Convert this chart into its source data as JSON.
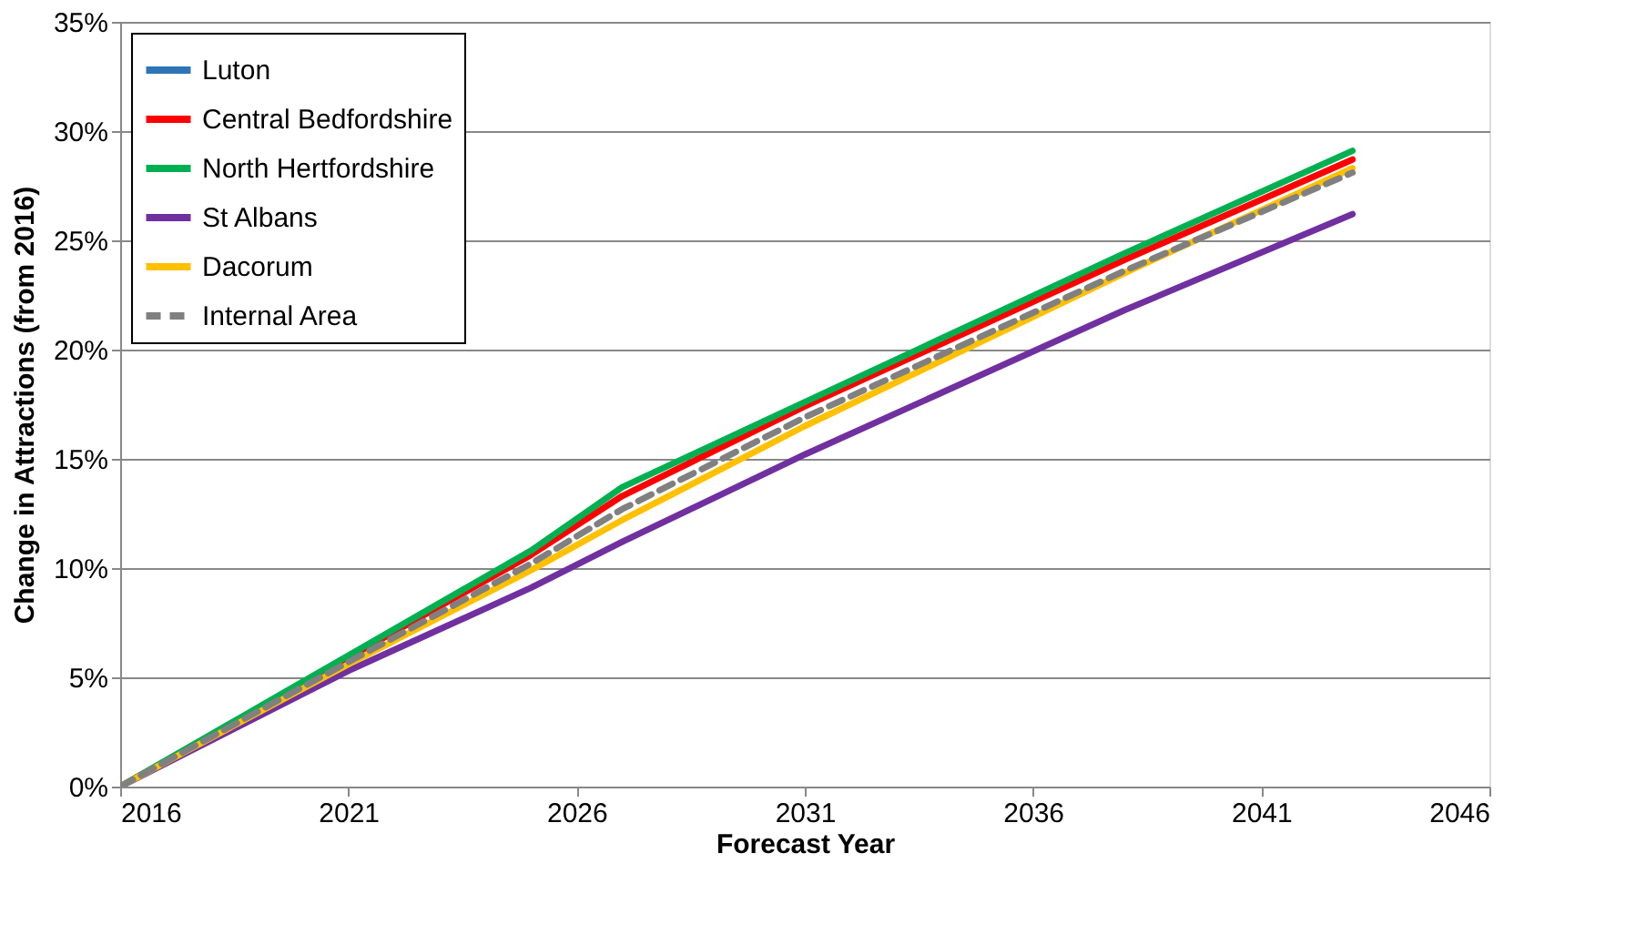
{
  "chart_data": {
    "type": "line",
    "xlabel": "Forecast Year",
    "ylabel": "Change in Attractions (from 2016)",
    "x": [
      2016,
      2021,
      2025,
      2027,
      2031,
      2038,
      2043
    ],
    "series": [
      {
        "name": "Luton",
        "color": "#2e75b6",
        "values": [
          null,
          null,
          null,
          null,
          null,
          null,
          null
        ]
      },
      {
        "name": "Central Bedfordshire",
        "color": "#ff0000",
        "values": [
          0,
          5.9,
          10.6,
          13.3,
          17.4,
          24.1,
          28.7
        ]
      },
      {
        "name": "North Hertfordshire",
        "color": "#00b050",
        "values": [
          0,
          6.0,
          10.8,
          13.7,
          17.6,
          24.4,
          29.1
        ]
      },
      {
        "name": "St Albans",
        "color": "#7030a0",
        "values": [
          0,
          5.3,
          9.1,
          11.2,
          15.2,
          21.8,
          26.2
        ]
      },
      {
        "name": "Dacorum",
        "color": "#ffc000",
        "values": [
          0,
          5.6,
          9.9,
          12.2,
          16.5,
          23.5,
          28.3
        ]
      },
      {
        "name": "Internal Area",
        "color": "#808080",
        "line_style": "dashed",
        "values": [
          0,
          5.7,
          10.2,
          12.7,
          16.9,
          23.6,
          28.1
        ]
      }
    ],
    "xlim": [
      2016,
      2046
    ],
    "xticks": [
      2016,
      2021,
      2026,
      2031,
      2036,
      2041,
      2046
    ],
    "ylim": [
      0,
      35
    ],
    "yticks": [
      {
        "value": 0,
        "label": "0%"
      },
      {
        "value": 5,
        "label": "5%"
      },
      {
        "value": 10,
        "label": "10%"
      },
      {
        "value": 15,
        "label": "15%"
      },
      {
        "value": 20,
        "label": "20%"
      },
      {
        "value": 25,
        "label": "25%"
      },
      {
        "value": 30,
        "label": "30%"
      },
      {
        "value": 35,
        "label": "35%"
      }
    ],
    "grid": "y",
    "legend": "top left",
    "line_style": "solid"
  }
}
